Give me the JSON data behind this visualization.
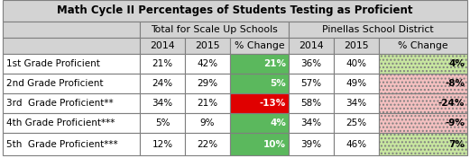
{
  "title": "Math Cycle II Percentages of Students Testing as Proficient",
  "rows": [
    {
      "label": "1st Grade Proficient",
      "vals": [
        "21%",
        "42%",
        "21%",
        "36%",
        "40%",
        "4%"
      ]
    },
    {
      "label": "2nd Grade Proficient",
      "vals": [
        "24%",
        "29%",
        "5%",
        "57%",
        "49%",
        "-8%"
      ]
    },
    {
      "label": "3rd  Grade Proficient**",
      "vals": [
        "34%",
        "21%",
        "-13%",
        "58%",
        "34%",
        "-24%"
      ]
    },
    {
      "label": "4th Grade Proficient***",
      "vals": [
        "5%",
        "9%",
        "4%",
        "34%",
        "25%",
        "-9%"
      ]
    },
    {
      "label": "5th  Grade Proficient***",
      "vals": [
        "12%",
        "22%",
        "10%",
        "39%",
        "46%",
        "7%"
      ]
    }
  ],
  "scale_pct_colors": [
    "#5bb85d",
    "#5bb85d",
    "#e00000",
    "#5bb85d",
    "#5bb85d"
  ],
  "pinellas_pct_colors": [
    "#c8e6a0",
    "#f4c0c0",
    "#f4c0c0",
    "#f4c0c0",
    "#c8e6a0"
  ],
  "pinellas_pct_hatch": [
    "///",
    "///",
    "///",
    "///",
    "///"
  ],
  "header_bg": "#d3d3d3",
  "white_bg": "#ffffff",
  "title_fontsize": 8.5,
  "header_fontsize": 7.8,
  "cell_fontsize": 7.5,
  "label_fontsize": 7.5,
  "col_headers": [
    "2014",
    "2015",
    "% Change",
    "2014",
    "2015",
    "% Change"
  ],
  "group1_label": "Total for Scale Up Schools",
  "group2_label": "Pinellas School District"
}
